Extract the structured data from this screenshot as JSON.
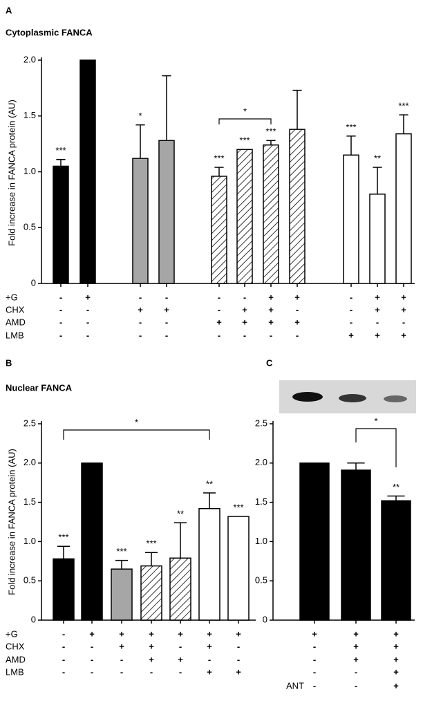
{
  "chart_data": [
    {
      "type": "bar",
      "panel": "A",
      "title": "Cytoplasmic FANCA",
      "y_label": "Fold increase in FANCA protein (AU)",
      "ylim": [
        0,
        2
      ],
      "yticks": [
        0,
        0.5,
        {
          "value": 1,
          "label": "1.0"
        },
        1.5,
        {
          "value": 2,
          "label": "2.0"
        }
      ],
      "values": [
        1.05,
        2.0,
        1.12,
        1.28,
        0.96,
        1.2,
        1.24,
        1.38,
        1.15,
        0.8,
        1.34
      ],
      "errors": [
        0.06,
        null,
        0.3,
        0.58,
        0.08,
        null,
        0.04,
        0.35,
        0.17,
        0.24,
        0.17
      ],
      "significance": [
        "***",
        null,
        "*",
        null,
        "***",
        "***",
        "***",
        null,
        "***",
        "**",
        "***"
      ],
      "colors": [
        "#000000",
        "#000000",
        "#a6a6a6",
        "#a6a6a6",
        "hatch",
        "hatch",
        "hatch",
        "hatch",
        "#ffffff",
        "#ffffff",
        "#ffffff"
      ],
      "bracket_label": "*",
      "rows": [
        {
          "label": "+G",
          "marks": [
            "-",
            "+",
            "-",
            "-",
            "-",
            "-",
            "+",
            "+",
            "-",
            "+",
            "+"
          ]
        },
        {
          "label": "CHX",
          "marks": [
            "-",
            "-",
            "+",
            "+",
            "-",
            "+",
            "+",
            "-",
            "-",
            "+",
            "+"
          ]
        },
        {
          "label": "AMD",
          "marks": [
            "-",
            "-",
            "-",
            "-",
            "+",
            "+",
            "+",
            "+",
            "-",
            "-",
            "-"
          ]
        },
        {
          "label": "LMB",
          "marks": [
            "-",
            "-",
            "-",
            "-",
            "-",
            "-",
            "-",
            "-",
            "+",
            "+",
            "+"
          ]
        }
      ]
    },
    {
      "type": "bar",
      "panel": "B",
      "title": "Nuclear FANCA",
      "y_label": "Fold increase in FANCA protein (AU)",
      "ylim": [
        0,
        2.5
      ],
      "yticks": [
        0,
        0.5,
        {
          "value": 1,
          "label": "1.0"
        },
        1.5,
        {
          "value": 2,
          "label": "2.0"
        },
        2.5
      ],
      "values": [
        0.78,
        2.0,
        0.65,
        0.69,
        0.79,
        1.42,
        1.32
      ],
      "errors": [
        0.16,
        null,
        0.11,
        0.17,
        0.45,
        0.2,
        null
      ],
      "significance": [
        "***",
        null,
        "***",
        "***",
        "**",
        "**",
        "***"
      ],
      "colors": [
        "#000000",
        "#000000",
        "#a6a6a6",
        "hatch",
        "hatch",
        "#ffffff",
        "#ffffff"
      ],
      "bracket_label": "*",
      "rows": [
        {
          "label": "+G",
          "marks": [
            "-",
            "+",
            "+",
            "+",
            "+",
            "+",
            "+"
          ]
        },
        {
          "label": "CHX",
          "marks": [
            "-",
            "-",
            "+",
            "+",
            "-",
            "+",
            "-"
          ]
        },
        {
          "label": "AMD",
          "marks": [
            "-",
            "-",
            "-",
            "+",
            "+",
            "-",
            "-"
          ]
        },
        {
          "label": "LMB",
          "marks": [
            "-",
            "-",
            "-",
            "-",
            "-",
            "+",
            "+"
          ]
        }
      ]
    },
    {
      "type": "bar",
      "panel": "C",
      "ylim": [
        0,
        2.5
      ],
      "yticks": [
        0,
        0.5,
        {
          "value": 1,
          "label": "1.0"
        },
        1.5,
        {
          "value": 2,
          "label": "2.0"
        },
        2.5
      ],
      "values": [
        2.0,
        1.91,
        1.52
      ],
      "errors": [
        null,
        0.09,
        0.06
      ],
      "significance": [
        null,
        null,
        "**"
      ],
      "colors": [
        "#000000",
        "#000000",
        "#000000"
      ],
      "bracket_label": "*",
      "rows": [
        {
          "label": null,
          "marks": [
            "+",
            "+",
            "+"
          ]
        },
        {
          "label": null,
          "marks": [
            "-",
            "+",
            "+"
          ]
        },
        {
          "label": null,
          "marks": [
            "-",
            "+",
            "+"
          ]
        },
        {
          "label": null,
          "marks": [
            "-",
            "-",
            "+"
          ]
        },
        {
          "label": "ANT",
          "marks": [
            "-",
            "-",
            "+"
          ]
        }
      ]
    }
  ]
}
